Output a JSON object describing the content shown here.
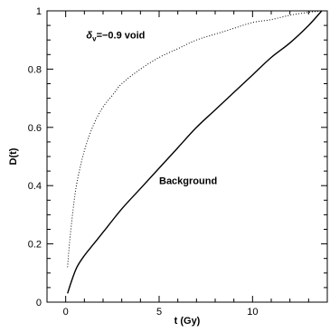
{
  "chart_data": {
    "type": "line",
    "xlabel": "t (Gy)",
    "ylabel": "D(t)",
    "xlim": [
      -1,
      14
    ],
    "ylim": [
      0,
      1
    ],
    "grid": false,
    "x_ticks_major": [
      0,
      5,
      10
    ],
    "x_ticks_minor": [
      1,
      2,
      3,
      4,
      6,
      7,
      8,
      9,
      11,
      12,
      13
    ],
    "y_ticks_major": [
      0,
      0.2,
      0.4,
      0.6,
      0.8,
      1
    ],
    "y_ticks_minor": [
      0.05,
      0.1,
      0.15,
      0.25,
      0.3,
      0.35,
      0.45,
      0.5,
      0.55,
      0.65,
      0.7,
      0.75,
      0.85,
      0.9,
      0.95
    ],
    "x_tick_labels": [
      "0",
      "5",
      "10"
    ],
    "y_tick_labels": [
      "0",
      "0.2",
      "0.4",
      "0.6",
      "0.8",
      "1"
    ],
    "annotations": [
      {
        "id": "void",
        "text": "=−0.9 void",
        "symbol": "δ",
        "subscript": "v",
        "anchor_x": 1.1,
        "anchor_y": 0.905
      },
      {
        "id": "background",
        "text": "Background",
        "anchor_x": 5.0,
        "anchor_y": 0.405
      }
    ],
    "series": [
      {
        "style": "solid",
        "x": [
          0.1,
          0.3,
          0.6,
          1,
          1.5,
          2,
          3,
          4,
          5,
          6,
          7,
          8,
          9,
          10,
          11,
          12,
          13,
          13.7
        ],
        "y": [
          0.03,
          0.07,
          0.12,
          0.16,
          0.2,
          0.24,
          0.32,
          0.39,
          0.46,
          0.53,
          0.6,
          0.66,
          0.72,
          0.78,
          0.84,
          0.89,
          0.95,
          1.0
        ]
      },
      {
        "style": "dotted",
        "x": [
          0.1,
          0.2,
          0.4,
          0.6,
          1,
          1.5,
          2,
          2.5,
          3,
          4,
          5,
          6,
          7,
          8,
          9,
          10,
          11,
          12,
          13,
          13.7
        ],
        "y": [
          0.12,
          0.2,
          0.32,
          0.41,
          0.52,
          0.61,
          0.67,
          0.71,
          0.75,
          0.8,
          0.84,
          0.87,
          0.9,
          0.92,
          0.94,
          0.96,
          0.97,
          0.985,
          0.995,
          1.0
        ]
      }
    ]
  }
}
